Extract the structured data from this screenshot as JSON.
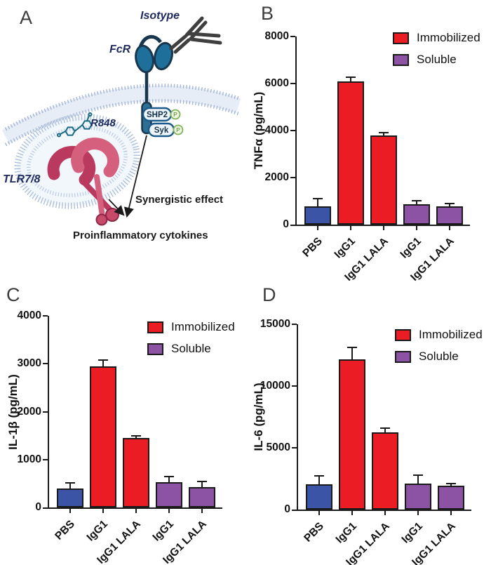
{
  "figure": {
    "background": "#ffffff",
    "panels": [
      {
        "letter": "A"
      },
      {
        "letter": "B"
      },
      {
        "letter": "C"
      },
      {
        "letter": "D"
      }
    ]
  },
  "diagram": {
    "labels": {
      "isotype": "Isotype",
      "fcr": "FcR",
      "r848": "R848",
      "tlr78": "TLR7/8",
      "shp2": "SHP2",
      "syk": "Syk",
      "phospho": "P",
      "synergy": "Synergistic effect",
      "outcome": "Proinflammatory cytokines"
    }
  },
  "colors": {
    "axis": "#1a1a1a",
    "navy": "#1e2a5e",
    "bar_blue": "#3B54A5",
    "bar_red": "#EC1C24",
    "bar_purple": "#8C52A4",
    "receptor_teal": "#1f6f9b",
    "receptor_dark": "#18374f",
    "tlr_crimson": "#b93a5e",
    "tlr_crimson_light": "#d4607e",
    "membrane_dot": "#9fb2d2",
    "membrane_band": "#e7edf6",
    "endosome_fill": "#f2f7fc",
    "pill_fill": "#edf4fb",
    "pill_border": "#1c5a8a",
    "phospho_fill": "#ecf6de",
    "phospho_border": "#7fb356",
    "antibody_grey": "#3f3f3f",
    "molecule_teal": "#1a6a86"
  },
  "chart_data": [
    {
      "panel": "B",
      "type": "bar",
      "title": "",
      "xlabel": "",
      "ylabel": "TNFα (pg/mL)",
      "ylim": [
        0,
        8000
      ],
      "yticks": [
        0,
        2000,
        4000,
        6000,
        8000
      ],
      "grid": false,
      "legend_position": "top-right",
      "categories": [
        "PBS",
        "IgG1",
        "IgG1 LALA",
        "IgG1",
        "IgG1 LALA"
      ],
      "values": [
        770,
        6100,
        3780,
        870,
        780
      ],
      "errors": [
        300,
        150,
        100,
        120,
        80
      ],
      "bar_color_keys": [
        "bar_blue",
        "bar_red",
        "bar_red",
        "bar_purple",
        "bar_purple"
      ],
      "legend": [
        {
          "label": "Immobilized",
          "color_key": "bar_red"
        },
        {
          "label": "Soluble",
          "color_key": "bar_purple"
        }
      ]
    },
    {
      "panel": "C",
      "type": "bar",
      "title": "",
      "xlabel": "",
      "ylabel": "IL-1β (pg/mL)",
      "ylim": [
        0,
        4000
      ],
      "yticks": [
        0,
        1000,
        2000,
        3000,
        4000
      ],
      "grid": false,
      "legend_position": "top-right",
      "categories": [
        "PBS",
        "IgG1",
        "IgG1 LALA",
        "IgG1",
        "IgG1 LALA"
      ],
      "values": [
        390,
        2950,
        1450,
        525,
        430
      ],
      "errors": [
        110,
        110,
        30,
        105,
        100
      ],
      "bar_color_keys": [
        "bar_blue",
        "bar_red",
        "bar_red",
        "bar_purple",
        "bar_purple"
      ],
      "legend": [
        {
          "label": "Immobilized",
          "color_key": "bar_red"
        },
        {
          "label": "Soluble",
          "color_key": "bar_purple"
        }
      ]
    },
    {
      "panel": "D",
      "type": "bar",
      "title": "",
      "xlabel": "",
      "ylabel": "IL-6 (pg/mL)",
      "ylim": [
        0,
        15000
      ],
      "yticks": [
        0,
        5000,
        10000,
        15000
      ],
      "grid": false,
      "legend_position": "top-right",
      "categories": [
        "PBS",
        "IgG1",
        "IgG1 LALA",
        "IgG1",
        "IgG1 LALA"
      ],
      "values": [
        2050,
        12150,
        6250,
        2120,
        1950
      ],
      "errors": [
        600,
        900,
        280,
        580,
        80
      ],
      "bar_color_keys": [
        "bar_blue",
        "bar_red",
        "bar_red",
        "bar_purple",
        "bar_purple"
      ],
      "legend": [
        {
          "label": "Immobilized",
          "color_key": "bar_red"
        },
        {
          "label": "Soluble",
          "color_key": "bar_purple"
        }
      ]
    }
  ]
}
